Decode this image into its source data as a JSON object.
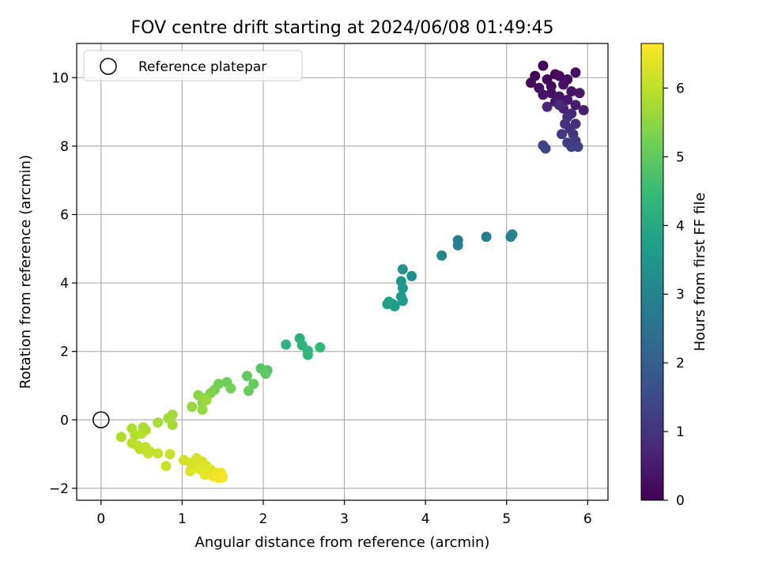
{
  "chart_data": {
    "type": "scatter",
    "title": "FOV centre drift starting at 2024/06/08 01:49:45",
    "xlabel": "Angular distance from reference (arcmin)",
    "ylabel": "Rotation from reference (arcmin)",
    "xlim": [
      -0.3,
      6.25
    ],
    "ylim": [
      -2.35,
      11.0
    ],
    "xticks": [
      0,
      1,
      2,
      3,
      4,
      5,
      6
    ],
    "yticks": [
      -2,
      0,
      2,
      4,
      6,
      8,
      10
    ],
    "grid": true,
    "legend": {
      "placement": "top-left",
      "entries": [
        "Reference platepar"
      ]
    },
    "colorbar": {
      "label": "Hours from first FF file",
      "range": [
        0,
        6.65
      ],
      "ticks": [
        0,
        1,
        2,
        3,
        4,
        5,
        6
      ],
      "colormap": "viridis"
    },
    "reference_point": {
      "x": 0,
      "y": 0
    },
    "series": [
      {
        "points": [
          [
            5.35,
            10.05,
            0.05
          ],
          [
            5.45,
            10.35,
            0.08
          ],
          [
            5.6,
            10.1,
            0.1
          ],
          [
            5.3,
            9.85,
            0.12
          ],
          [
            5.5,
            9.95,
            0.15
          ],
          [
            5.65,
            10.05,
            0.18
          ],
          [
            5.55,
            9.75,
            0.2
          ],
          [
            5.75,
            9.95,
            0.22
          ],
          [
            5.4,
            9.7,
            0.25
          ],
          [
            5.85,
            10.15,
            0.28
          ],
          [
            5.7,
            9.8,
            0.3
          ],
          [
            5.55,
            9.55,
            0.33
          ],
          [
            5.8,
            9.6,
            0.35
          ],
          [
            5.45,
            9.5,
            0.38
          ],
          [
            5.65,
            9.45,
            0.4
          ],
          [
            5.9,
            9.55,
            0.43
          ],
          [
            5.75,
            9.35,
            0.46
          ],
          [
            5.6,
            9.3,
            0.5
          ],
          [
            5.85,
            9.2,
            0.55
          ],
          [
            5.95,
            9.05,
            0.6
          ],
          [
            5.7,
            9.1,
            0.65
          ],
          [
            5.5,
            9.15,
            0.7
          ],
          [
            5.8,
            8.95,
            0.75
          ],
          [
            5.65,
            9.2,
            0.8
          ],
          [
            5.75,
            8.85,
            0.85
          ],
          [
            5.85,
            8.65,
            0.9
          ],
          [
            5.72,
            8.65,
            0.95
          ],
          [
            5.78,
            8.5,
            1.0
          ],
          [
            5.68,
            8.35,
            1.05
          ],
          [
            5.82,
            8.35,
            1.1
          ],
          [
            5.85,
            8.15,
            1.15
          ],
          [
            5.75,
            8.1,
            1.2
          ],
          [
            5.8,
            7.98,
            1.25
          ],
          [
            5.88,
            7.98,
            1.3
          ],
          [
            5.45,
            8.02,
            1.35
          ],
          [
            5.48,
            7.93,
            1.4
          ]
        ]
      },
      {
        "points": [
          [
            4.75,
            5.35,
            2.85
          ],
          [
            5.05,
            5.35,
            2.95
          ],
          [
            5.07,
            5.42,
            3.0
          ],
          [
            4.4,
            5.25,
            2.75
          ],
          [
            4.4,
            5.1,
            2.8
          ],
          [
            4.2,
            4.8,
            3.1
          ],
          [
            3.83,
            4.2,
            3.3
          ],
          [
            3.72,
            4.4,
            3.4
          ],
          [
            3.7,
            4.05,
            3.45
          ],
          [
            3.72,
            3.85,
            3.5
          ],
          [
            3.7,
            3.6,
            3.55
          ],
          [
            3.72,
            3.48,
            3.6
          ],
          [
            3.6,
            3.38,
            3.65
          ],
          [
            3.62,
            3.32,
            3.7
          ],
          [
            3.55,
            3.45,
            3.75
          ],
          [
            3.53,
            3.38,
            3.8
          ]
        ]
      },
      {
        "points": [
          [
            2.45,
            2.38,
            4.2
          ],
          [
            2.28,
            2.2,
            4.25
          ],
          [
            2.48,
            2.18,
            4.3
          ],
          [
            2.55,
            2.02,
            4.35
          ],
          [
            2.55,
            1.9,
            4.4
          ],
          [
            2.7,
            2.12,
            4.45
          ],
          [
            2.05,
            1.45,
            4.85
          ],
          [
            1.97,
            1.5,
            4.9
          ],
          [
            2.03,
            1.35,
            4.95
          ],
          [
            1.8,
            1.28,
            5.0
          ],
          [
            1.88,
            1.05,
            5.05
          ],
          [
            1.82,
            0.85,
            5.1
          ],
          [
            1.55,
            1.1,
            5.15
          ],
          [
            1.45,
            1.05,
            5.2
          ],
          [
            1.6,
            0.92,
            5.25
          ],
          [
            1.4,
            0.88,
            5.3
          ],
          [
            1.35,
            0.78,
            5.35
          ],
          [
            1.3,
            0.65,
            5.4
          ],
          [
            1.2,
            0.72,
            5.45
          ],
          [
            1.25,
            0.5,
            5.5
          ],
          [
            1.12,
            0.38,
            5.55
          ],
          [
            1.25,
            0.3,
            5.6
          ],
          [
            1.3,
            0.58,
            5.65
          ]
        ]
      },
      {
        "points": [
          [
            0.88,
            0.15,
            5.7
          ],
          [
            0.83,
            0.05,
            5.72
          ],
          [
            0.88,
            -0.15,
            5.75
          ],
          [
            0.7,
            -0.08,
            5.78
          ],
          [
            0.52,
            -0.22,
            5.8
          ],
          [
            0.55,
            -0.3,
            5.82
          ],
          [
            0.38,
            -0.25,
            5.85
          ],
          [
            0.25,
            -0.5,
            5.88
          ],
          [
            0.42,
            -0.45,
            5.9
          ],
          [
            0.5,
            -0.4,
            5.92
          ],
          [
            0.38,
            -0.68,
            5.95
          ],
          [
            0.45,
            -0.75,
            5.97
          ],
          [
            0.55,
            -0.8,
            6.0
          ],
          [
            0.48,
            -0.85,
            6.02
          ],
          [
            0.6,
            -0.92,
            6.05
          ],
          [
            0.58,
            -0.98,
            6.08
          ],
          [
            0.7,
            -0.98,
            6.1
          ],
          [
            0.85,
            -1.0,
            6.12
          ],
          [
            0.8,
            -1.35,
            6.15
          ],
          [
            1.02,
            -1.18,
            6.18
          ],
          [
            1.1,
            -1.25,
            6.2
          ],
          [
            1.15,
            -1.3,
            6.22
          ],
          [
            1.18,
            -1.12,
            6.25
          ],
          [
            1.25,
            -1.22,
            6.28
          ],
          [
            1.3,
            -1.35,
            6.3
          ],
          [
            1.1,
            -1.5,
            6.32
          ],
          [
            1.22,
            -1.45,
            6.35
          ],
          [
            1.35,
            -1.45,
            6.38
          ],
          [
            1.28,
            -1.6,
            6.4
          ],
          [
            1.42,
            -1.55,
            6.42
          ],
          [
            1.48,
            -1.55,
            6.45
          ],
          [
            1.38,
            -1.65,
            6.5
          ],
          [
            1.45,
            -1.7,
            6.55
          ],
          [
            1.5,
            -1.68,
            6.6
          ]
        ]
      }
    ]
  },
  "colors": {
    "grid": "#b0b0b0",
    "axis": "#000000",
    "viridis": [
      "#440154",
      "#482878",
      "#3e4989",
      "#31688e",
      "#26828e",
      "#1f9e89",
      "#35b779",
      "#6ece58",
      "#b5de2b",
      "#fde725"
    ]
  }
}
